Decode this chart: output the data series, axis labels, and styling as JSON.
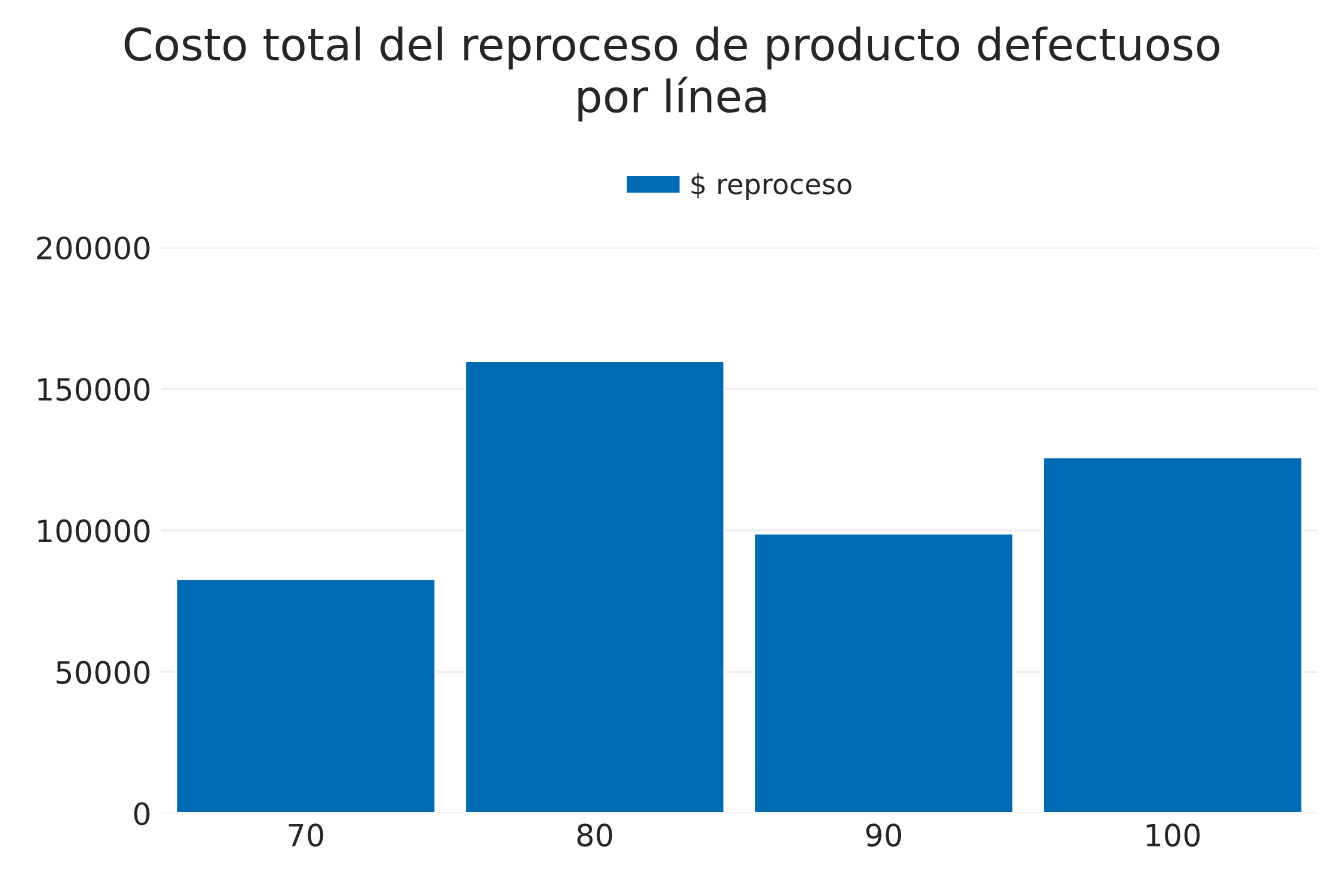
{
  "chart_data": {
    "type": "bar",
    "title": "Costo total del reproceso de producto defectuoso\npor línea",
    "categories": [
      "70",
      "80",
      "90",
      "100"
    ],
    "series": [
      {
        "name": "$ reproceso",
        "color": "#006bb3",
        "values": [
          83000,
          160000,
          99000,
          126000
        ]
      }
    ],
    "ylim": [
      0,
      200000
    ],
    "yticks": [
      0,
      50000,
      100000,
      150000,
      200000
    ],
    "grid": "y",
    "legend": "top"
  }
}
